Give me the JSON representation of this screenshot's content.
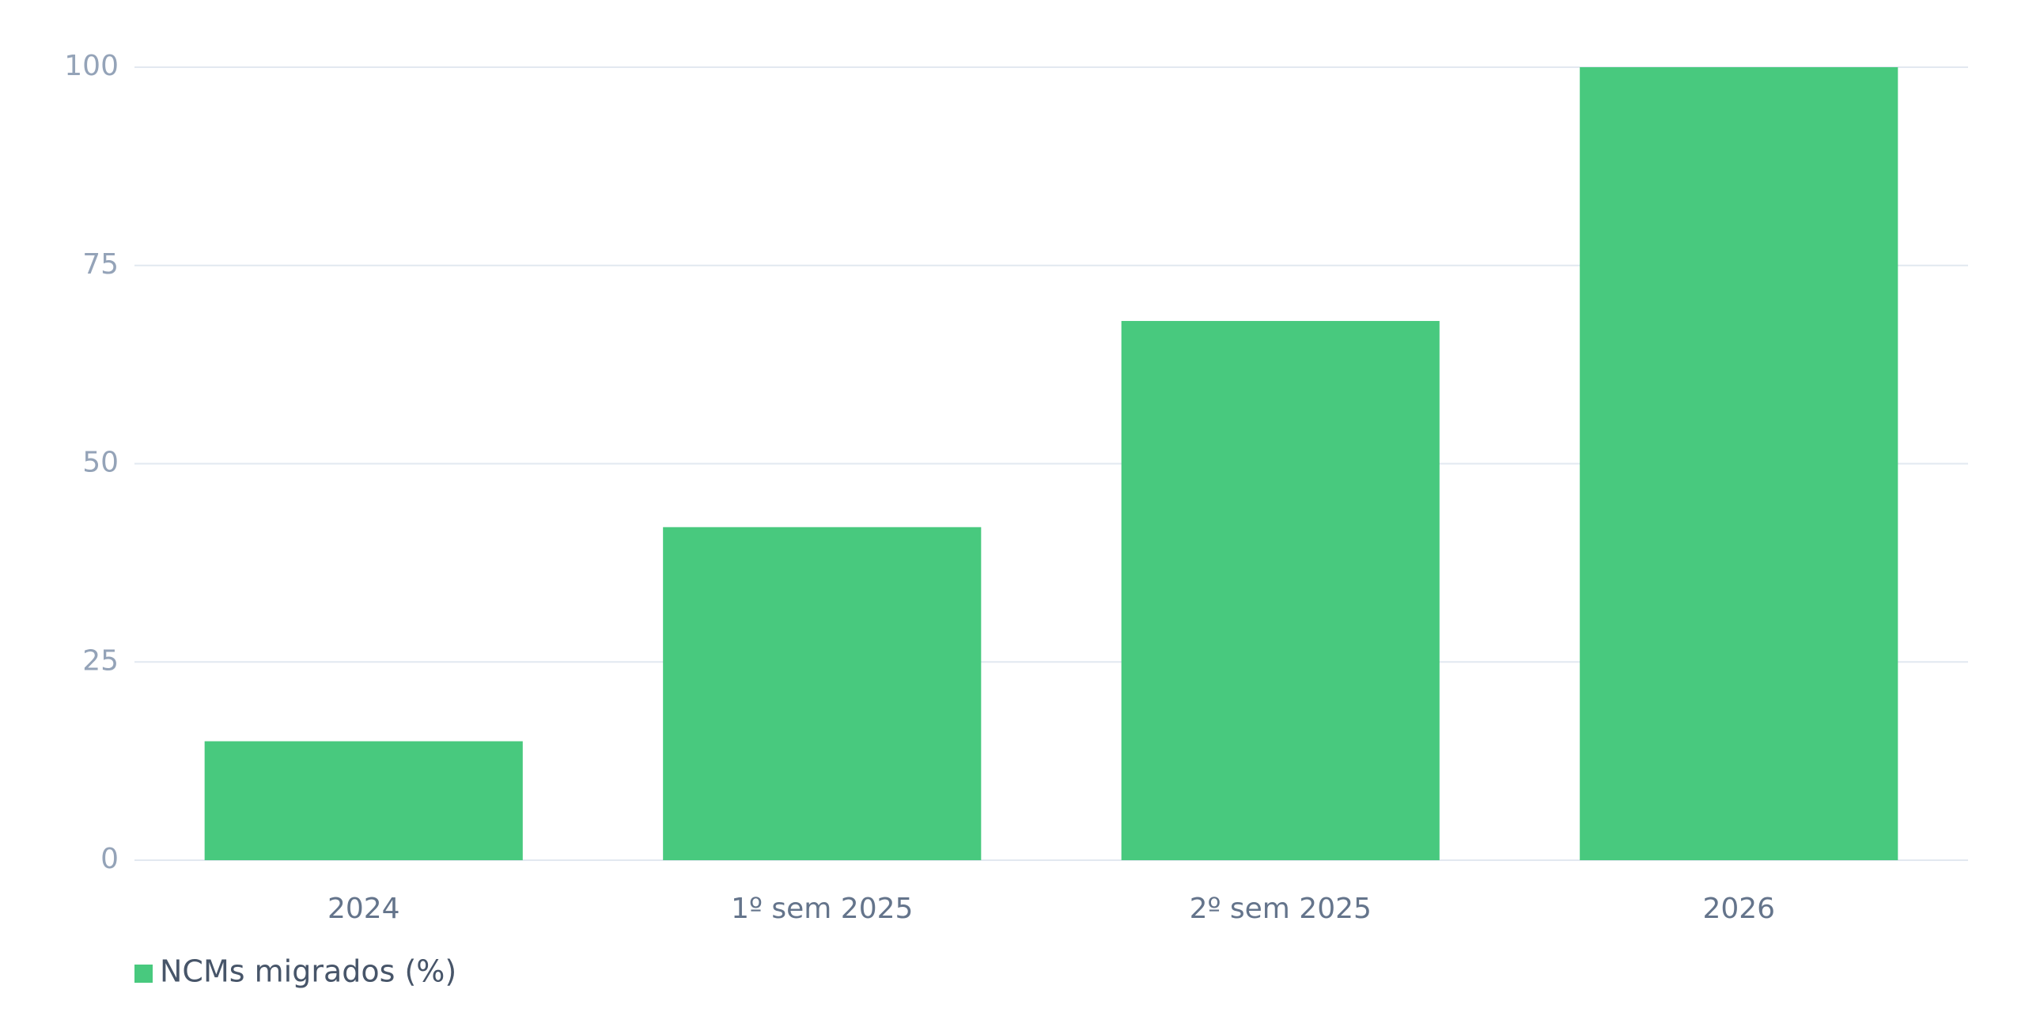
{
  "chart_data": {
    "type": "bar",
    "categories": [
      "2024",
      "1º sem 2025",
      "2º sem 2025",
      "2026"
    ],
    "series": [
      {
        "name": "NCMs migrados (%)",
        "color": "#48c97e",
        "values": [
          15,
          42,
          68,
          100
        ]
      }
    ],
    "ylim": [
      0,
      100
    ],
    "yticks": [
      0,
      25,
      50,
      75,
      100
    ],
    "grid": true,
    "legend": "bottom-left"
  }
}
